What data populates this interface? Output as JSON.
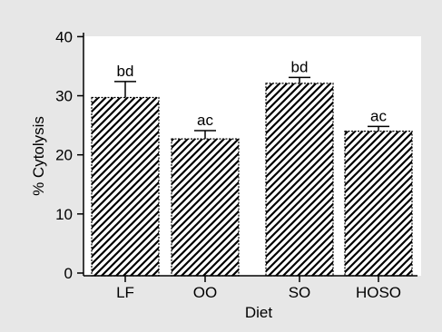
{
  "chart_data": {
    "type": "bar",
    "categories": [
      "LF",
      "OO",
      "SO",
      "HOSO"
    ],
    "values": [
      29.7,
      22.7,
      32.1,
      24.0
    ],
    "errors": [
      2.7,
      1.4,
      1.0,
      0.8
    ],
    "annotations": [
      "bd",
      "ac",
      "bd",
      "ac"
    ],
    "xlabel": "Diet",
    "ylabel": "% Cytolysis",
    "ylim": [
      0,
      40
    ],
    "yticks": [
      0,
      10,
      20,
      30,
      40
    ],
    "bar_fill": "hatched diagonal",
    "colors": {
      "background": "#e7e7e7",
      "plot": "#ffffff",
      "ink": "#000000"
    }
  }
}
